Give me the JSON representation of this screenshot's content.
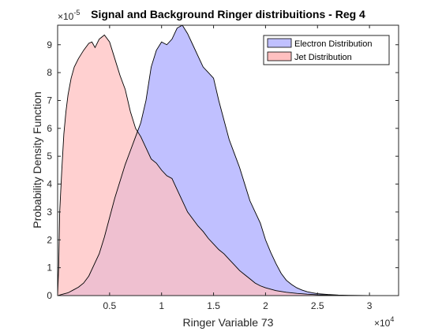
{
  "chart_data": {
    "type": "area",
    "title": "Signal and Background Ringer distribuitions - Reg 4",
    "xlabel": "Ringer Variable 73",
    "ylabel": "Probability Density Function",
    "x_exponent_label": "×10",
    "x_exponent": "4",
    "y_exponent_label": "×10",
    "y_exponent": "-5",
    "xlim": [
      0,
      32800
    ],
    "ylim": [
      0,
      9.7
    ],
    "x_ticks": [
      5000,
      10000,
      15000,
      20000,
      25000,
      30000
    ],
    "x_tick_labels": [
      "0.5",
      "1",
      "1.5",
      "2",
      "2.5",
      "3"
    ],
    "y_ticks": [
      0,
      1,
      2,
      3,
      4,
      5,
      6,
      7,
      8,
      9
    ],
    "y_tick_labels": [
      "0",
      "1",
      "2",
      "3",
      "4",
      "5",
      "6",
      "7",
      "8",
      "9"
    ],
    "grid": false,
    "legend_position": "top-right",
    "colors": {
      "electron_fill": "#c0c0ff",
      "jet_fill": "#ffc0c0",
      "overlap_fill": "#cc94c4",
      "outline": "#000000"
    },
    "series": [
      {
        "name": "Electron Distribution",
        "color": "#c0c0ff",
        "x": [
          0,
          500,
          1000,
          1500,
          2000,
          2500,
          3000,
          3500,
          4000,
          4500,
          5000,
          5500,
          6000,
          6500,
          7000,
          7500,
          8000,
          8500,
          9000,
          9500,
          10000,
          10500,
          11000,
          11500,
          12000,
          12500,
          13000,
          13500,
          14000,
          14500,
          15000,
          15500,
          16000,
          16500,
          17000,
          17500,
          18000,
          18500,
          19000,
          19500,
          20000,
          20500,
          21000,
          21500,
          22000,
          22500,
          23000,
          23500,
          24000,
          24500,
          25000,
          26000,
          27000,
          28000,
          29000,
          30000,
          32800
        ],
        "y": [
          0,
          0.05,
          0.1,
          0.2,
          0.3,
          0.45,
          0.7,
          1.1,
          1.5,
          2.1,
          2.8,
          3.5,
          4.1,
          4.7,
          5.2,
          5.7,
          6.2,
          7.0,
          8.2,
          8.8,
          9.1,
          9.0,
          9.2,
          9.6,
          9.7,
          9.4,
          9.0,
          8.6,
          8.2,
          8.0,
          7.8,
          7.0,
          6.3,
          5.6,
          5.1,
          4.6,
          4.0,
          3.4,
          3.0,
          2.6,
          2.0,
          1.55,
          1.15,
          0.8,
          0.55,
          0.4,
          0.28,
          0.2,
          0.14,
          0.1,
          0.07,
          0.04,
          0.02,
          0.01,
          0.005,
          0.002,
          0
        ]
      },
      {
        "name": "Jet Distribution",
        "color": "#ffc0c0",
        "x": [
          0,
          100,
          200,
          400,
          600,
          800,
          1000,
          1300,
          1600,
          2000,
          2500,
          3000,
          3300,
          3600,
          4000,
          4500,
          5000,
          5500,
          6000,
          6500,
          7000,
          7500,
          8000,
          8500,
          9000,
          9500,
          10000,
          10500,
          11000,
          11500,
          12000,
          12500,
          13000,
          13500,
          14000,
          14500,
          15000,
          15500,
          16000,
          16500,
          17000,
          17500,
          18000,
          18500,
          19000,
          19500,
          20000,
          21000,
          22000,
          23000,
          24000,
          25000,
          26000,
          27000,
          28000,
          30000,
          32800
        ],
        "y": [
          0,
          1.0,
          3.0,
          4.5,
          5.8,
          6.6,
          7.2,
          7.8,
          8.2,
          8.5,
          8.8,
          9.05,
          9.1,
          8.9,
          9.2,
          9.35,
          9.1,
          8.5,
          7.9,
          7.4,
          6.6,
          6.0,
          5.7,
          5.3,
          4.9,
          4.75,
          4.5,
          4.3,
          4.2,
          3.8,
          3.4,
          3.0,
          2.75,
          2.5,
          2.3,
          2.05,
          1.85,
          1.65,
          1.5,
          1.3,
          1.1,
          0.9,
          0.75,
          0.6,
          0.45,
          0.35,
          0.28,
          0.18,
          0.12,
          0.08,
          0.05,
          0.03,
          0.02,
          0.01,
          0.005,
          0.002,
          0
        ]
      }
    ]
  }
}
